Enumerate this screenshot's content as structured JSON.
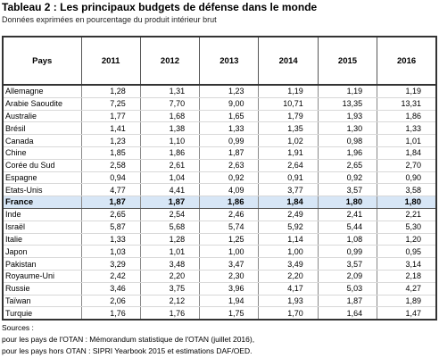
{
  "header": {
    "title": "Tableau 2 : Les principaux budgets de défense dans le monde",
    "subtitle": "Données exprimées en pourcentage du produit intérieur brut"
  },
  "table": {
    "columns": [
      "Pays",
      "2011",
      "2012",
      "2013",
      "2014",
      "2015",
      "2016"
    ],
    "rows": [
      [
        "Allemagne",
        "1,28",
        "1,31",
        "1,23",
        "1,19",
        "1,19",
        "1,19"
      ],
      [
        "Arabie Saoudite",
        "7,25",
        "7,70",
        "9,00",
        "10,71",
        "13,35",
        "13,31"
      ],
      [
        "Australie",
        "1,77",
        "1,68",
        "1,65",
        "1,79",
        "1,93",
        "1,86"
      ],
      [
        "Brésil",
        "1,41",
        "1,38",
        "1,33",
        "1,35",
        "1,30",
        "1,33"
      ],
      [
        "Canada",
        "1,23",
        "1,10",
        "0,99",
        "1,02",
        "0,98",
        "1,01"
      ],
      [
        "Chine",
        "1,85",
        "1,86",
        "1,87",
        "1,91",
        "1,96",
        "1,84"
      ],
      [
        "Corée du Sud",
        "2,58",
        "2,61",
        "2,63",
        "2,64",
        "2,65",
        "2,70"
      ],
      [
        "Espagne",
        "0,94",
        "1,04",
        "0,92",
        "0,91",
        "0,92",
        "0,90"
      ],
      [
        "Etats-Unis",
        "4,77",
        "4,41",
        "4,09",
        "3,77",
        "3,57",
        "3,58"
      ],
      [
        "France",
        "1,87",
        "1,87",
        "1,86",
        "1,84",
        "1,80",
        "1,80"
      ],
      [
        "Inde",
        "2,65",
        "2,54",
        "2,46",
        "2,49",
        "2,41",
        "2,21"
      ],
      [
        "Israël",
        "5,87",
        "5,68",
        "5,74",
        "5,92",
        "5,44",
        "5,30"
      ],
      [
        "Italie",
        "1,33",
        "1,28",
        "1,25",
        "1,14",
        "1,08",
        "1,20"
      ],
      [
        "Japon",
        "1,03",
        "1,01",
        "1,00",
        "1,00",
        "0,99",
        "0,95"
      ],
      [
        "Pakistan",
        "3,29",
        "3,48",
        "3,47",
        "3,49",
        "3,57",
        "3,14"
      ],
      [
        "Royaume-Uni",
        "2,42",
        "2,20",
        "2,30",
        "2,20",
        "2,09",
        "2,18"
      ],
      [
        "Russie",
        "3,46",
        "3,75",
        "3,96",
        "4,17",
        "5,03",
        "4,27"
      ],
      [
        "Taïwan",
        "2,06",
        "2,12",
        "1,94",
        "1,93",
        "1,87",
        "1,89"
      ],
      [
        "Turquie",
        "1,76",
        "1,76",
        "1,75",
        "1,70",
        "1,64",
        "1,47"
      ]
    ]
  },
  "sources": {
    "heading": "Sources :",
    "lines": [
      "pour les pays de l'OTAN : Mémorandum statistique de l'OTAN (juillet 2016),",
      "pour les pays hors OTAN : SIPRI Yearbook 2015 et estimations DAF/OED."
    ]
  }
}
